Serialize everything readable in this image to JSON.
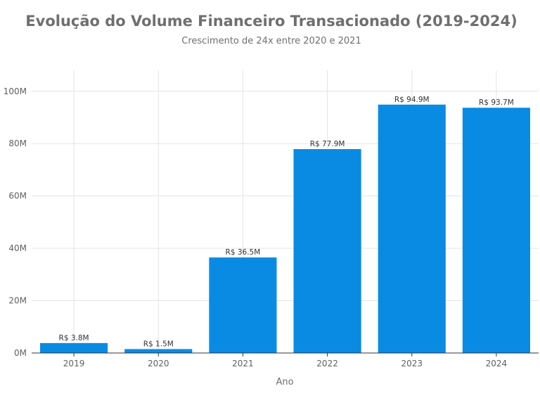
{
  "chart_data": {
    "type": "bar",
    "title": "Evolução do Volume Financeiro Transacionado (2019-2024)",
    "subtitle": "Crescimento de 24x entre 2020 e 2021",
    "xlabel": "Ano",
    "ylabel": "",
    "categories": [
      "2019",
      "2020",
      "2021",
      "2022",
      "2023",
      "2024"
    ],
    "values": [
      3.8,
      1.5,
      36.5,
      77.9,
      94.9,
      93.7
    ],
    "data_labels": [
      "R$ 3.8M",
      "R$ 1.5M",
      "R$ 36.5M",
      "R$ 77.9M",
      "R$ 94.9M",
      "R$ 93.7M"
    ],
    "ylim": [
      0,
      108
    ],
    "y_ticks": [
      0,
      20,
      40,
      60,
      80,
      100
    ],
    "y_tick_labels": [
      "0M",
      "20M",
      "40M",
      "60M",
      "80M",
      "100M"
    ],
    "grid": true,
    "legend": "none",
    "bar_color": "#0a8be3"
  }
}
